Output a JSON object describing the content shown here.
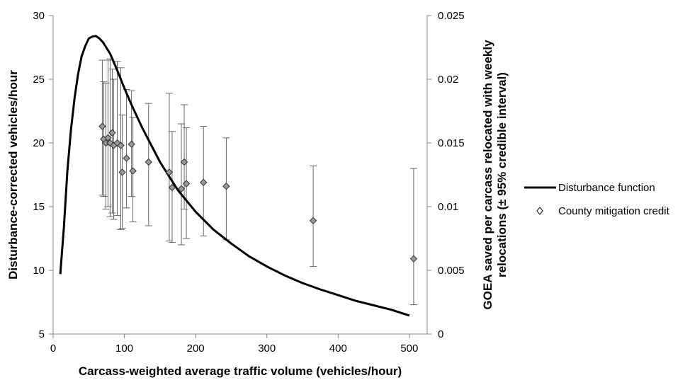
{
  "chart_data": {
    "type": "scatter",
    "xlabel": "Carcass-weighted average traffic volume (vehicles/hour)",
    "ylabel_left": "Disturbance-corrected vehicles/hour",
    "ylabel_right_line1": "GOEA saved per carcass relocated with weekly",
    "ylabel_right_line2": "relocations (± 95% credible interval)",
    "xlim": [
      0,
      525
    ],
    "ylim_left": [
      5,
      30
    ],
    "ylim_right": [
      0,
      0.025
    ],
    "x_ticks": [
      "0",
      "100",
      "200",
      "300",
      "400",
      "500"
    ],
    "y_left_ticks": [
      "5",
      "10",
      "15",
      "20",
      "25",
      "30"
    ],
    "y_right_ticks": [
      "0",
      "0.005",
      "0.01",
      "0.015",
      "0.02",
      "0.025"
    ],
    "legend_position": "right",
    "grid": false,
    "series": [
      {
        "name": "Disturbance function",
        "kind": "line",
        "axis": "left",
        "color": "#000000",
        "points": [
          [
            10,
            9.7
          ],
          [
            15,
            13.3
          ],
          [
            20,
            17.8
          ],
          [
            25,
            21.0
          ],
          [
            30,
            23.5
          ],
          [
            35,
            25.4
          ],
          [
            40,
            26.8
          ],
          [
            45,
            27.6
          ],
          [
            50,
            28.2
          ],
          [
            55,
            28.35
          ],
          [
            60,
            28.4
          ],
          [
            65,
            28.2
          ],
          [
            70,
            27.9
          ],
          [
            80,
            27.0
          ],
          [
            90,
            25.7
          ],
          [
            100,
            24.3
          ],
          [
            110,
            23.0
          ],
          [
            125,
            21.2
          ],
          [
            150,
            18.5
          ],
          [
            175,
            16.3
          ],
          [
            200,
            14.6
          ],
          [
            225,
            13.2
          ],
          [
            250,
            12.1
          ],
          [
            275,
            11.1
          ],
          [
            300,
            10.3
          ],
          [
            325,
            9.6
          ],
          [
            350,
            9.0
          ],
          [
            375,
            8.5
          ],
          [
            400,
            8.05
          ],
          [
            425,
            7.6
          ],
          [
            450,
            7.25
          ],
          [
            475,
            6.9
          ],
          [
            500,
            6.45
          ]
        ]
      },
      {
        "name": "County mitigation credit",
        "kind": "scatter",
        "axis": "right",
        "color": "#999999",
        "points": [
          {
            "x": 69,
            "y": 0.0163,
            "lo": 0.0109,
            "hi": 0.0215
          },
          {
            "x": 71,
            "y": 0.0153,
            "lo": 0.0108,
            "hi": 0.0198
          },
          {
            "x": 74,
            "y": 0.015,
            "lo": 0.0098,
            "hi": 0.0197
          },
          {
            "x": 77,
            "y": 0.0154,
            "lo": 0.01,
            "hi": 0.0215
          },
          {
            "x": 80,
            "y": 0.015,
            "lo": 0.0092,
            "hi": 0.0216
          },
          {
            "x": 83,
            "y": 0.0158,
            "lo": 0.0095,
            "hi": 0.0208
          },
          {
            "x": 85,
            "y": 0.0148,
            "lo": 0.009,
            "hi": 0.02
          },
          {
            "x": 90,
            "y": 0.015,
            "lo": 0.0093,
            "hi": 0.0214
          },
          {
            "x": 95,
            "y": 0.0148,
            "lo": 0.0082,
            "hi": 0.0209
          },
          {
            "x": 97,
            "y": 0.0127,
            "lo": 0.0083,
            "hi": 0.0172
          },
          {
            "x": 103,
            "y": 0.0138,
            "lo": 0.0099,
            "hi": 0.0192
          },
          {
            "x": 110,
            "y": 0.0149,
            "lo": 0.0108,
            "hi": 0.0191
          },
          {
            "x": 112,
            "y": 0.0128,
            "lo": 0.0088,
            "hi": 0.017
          },
          {
            "x": 134,
            "y": 0.0135,
            "lo": 0.0085,
            "hi": 0.0181
          },
          {
            "x": 163,
            "y": 0.0127,
            "lo": 0.0073,
            "hi": 0.0189
          },
          {
            "x": 167,
            "y": 0.0115,
            "lo": 0.0072,
            "hi": 0.0159
          },
          {
            "x": 180,
            "y": 0.0114,
            "lo": 0.007,
            "hi": 0.0165
          },
          {
            "x": 184,
            "y": 0.0135,
            "lo": 0.0098,
            "hi": 0.018
          },
          {
            "x": 187,
            "y": 0.0118,
            "lo": 0.0075,
            "hi": 0.0162
          },
          {
            "x": 211,
            "y": 0.0119,
            "lo": 0.0077,
            "hi": 0.0163
          },
          {
            "x": 243,
            "y": 0.0116,
            "lo": 0.0074,
            "hi": 0.0154
          },
          {
            "x": 365,
            "y": 0.0089,
            "lo": 0.0053,
            "hi": 0.0132
          },
          {
            "x": 506,
            "y": 0.0059,
            "lo": 0.0023,
            "hi": 0.013
          }
        ]
      }
    ]
  }
}
